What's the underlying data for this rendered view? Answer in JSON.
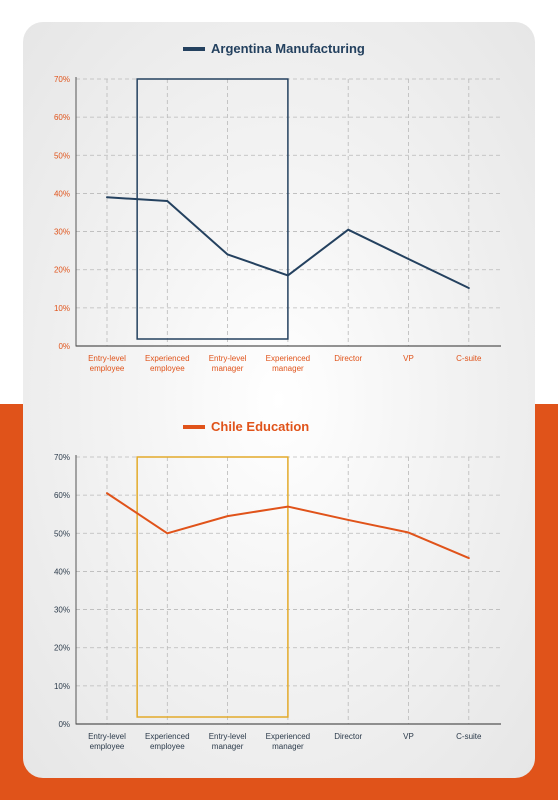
{
  "chart_data": [
    {
      "type": "line",
      "categories": [
        [
          "Entry-level",
          "employee"
        ],
        [
          "Experienced",
          "employee"
        ],
        [
          "Entry-level",
          "manager"
        ],
        [
          "Experienced",
          "manager"
        ],
        [
          "Director"
        ],
        [
          "VP"
        ],
        [
          "C-suite"
        ]
      ],
      "series": [
        {
          "name": "Argentina Manufacturing",
          "values": [
            39,
            38,
            24,
            18.5,
            30.5,
            22.8,
            15.2
          ],
          "color": "#24415f"
        }
      ],
      "yticks": [
        "0%",
        "10%",
        "20%",
        "30%",
        "40%",
        "50%",
        "60%",
        "70%"
      ],
      "ylim": [
        0,
        70
      ],
      "highlight": {
        "from_index": 1,
        "to_index": 3,
        "color": "#24415f"
      },
      "tick_color": "#e0531a",
      "category_color": "#e0531a",
      "grid": true
    },
    {
      "type": "line",
      "categories": [
        [
          "Entry-level",
          "employee"
        ],
        [
          "Experienced",
          "employee"
        ],
        [
          "Entry-level",
          "manager"
        ],
        [
          "Experienced",
          "manager"
        ],
        [
          "Director"
        ],
        [
          "VP"
        ],
        [
          "C-suite"
        ]
      ],
      "series": [
        {
          "name": "Chile Education",
          "values": [
            60.5,
            50,
            54.5,
            57,
            53.5,
            50.2,
            43.5
          ],
          "color": "#e0531a"
        }
      ],
      "yticks": [
        "0%",
        "10%",
        "20%",
        "30%",
        "40%",
        "50%",
        "60%",
        "70%"
      ],
      "ylim": [
        0,
        70
      ],
      "highlight": {
        "from_index": 1,
        "to_index": 3,
        "color": "#e3aa2a"
      },
      "tick_color": "#2b3a4a",
      "category_color": "#2b3a4a",
      "grid": true
    }
  ]
}
